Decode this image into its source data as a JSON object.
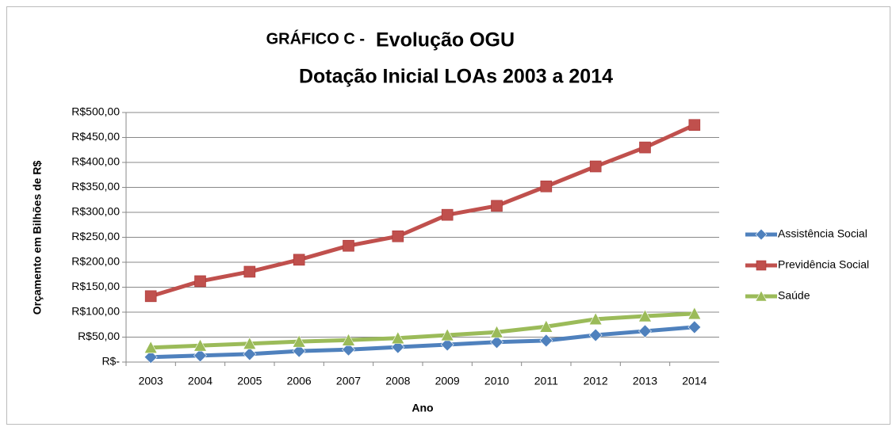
{
  "chart_data": {
    "type": "line",
    "title": [
      "GRÁFICO C -",
      "Evolução OGU"
    ],
    "subtitle": "Dotação Inicial LOAs 2003 a 2014",
    "x_label": "Ano",
    "y_label": "Orçamento em Bilhões de R$",
    "categories": [
      "2003",
      "2004",
      "2005",
      "2006",
      "2007",
      "2008",
      "2009",
      "2010",
      "2011",
      "2012",
      "2013",
      "2014"
    ],
    "series": [
      {
        "name": "Assistência Social",
        "color": "#4f81bd",
        "marker": "diamond",
        "values": [
          10,
          13,
          16,
          22,
          25,
          30,
          35,
          40,
          43,
          54,
          62,
          70
        ]
      },
      {
        "name": "Previdência Social",
        "color": "#c0504d",
        "marker": "square",
        "values": [
          132,
          162,
          181,
          205,
          233,
          252,
          295,
          313,
          352,
          392,
          430,
          475
        ]
      },
      {
        "name": "Saúde",
        "color": "#9bbb59",
        "marker": "triangle",
        "values": [
          29,
          33,
          37,
          41,
          44,
          48,
          54,
          60,
          71,
          86,
          92,
          97
        ]
      }
    ],
    "ylim": [
      0,
      500
    ],
    "yticks": [
      {
        "value": 0,
        "label": "R$-"
      },
      {
        "value": 50,
        "label": "R$50,00"
      },
      {
        "value": 100,
        "label": "R$100,00"
      },
      {
        "value": 150,
        "label": "R$150,00"
      },
      {
        "value": 200,
        "label": "R$200,00"
      },
      {
        "value": 250,
        "label": "R$250,00"
      },
      {
        "value": 300,
        "label": "R$300,00"
      },
      {
        "value": 350,
        "label": "R$350,00"
      },
      {
        "value": 400,
        "label": "R$400,00"
      },
      {
        "value": 450,
        "label": "R$450,00"
      },
      {
        "value": 500,
        "label": "R$500,00"
      }
    ],
    "grid": true,
    "legend": "right"
  }
}
